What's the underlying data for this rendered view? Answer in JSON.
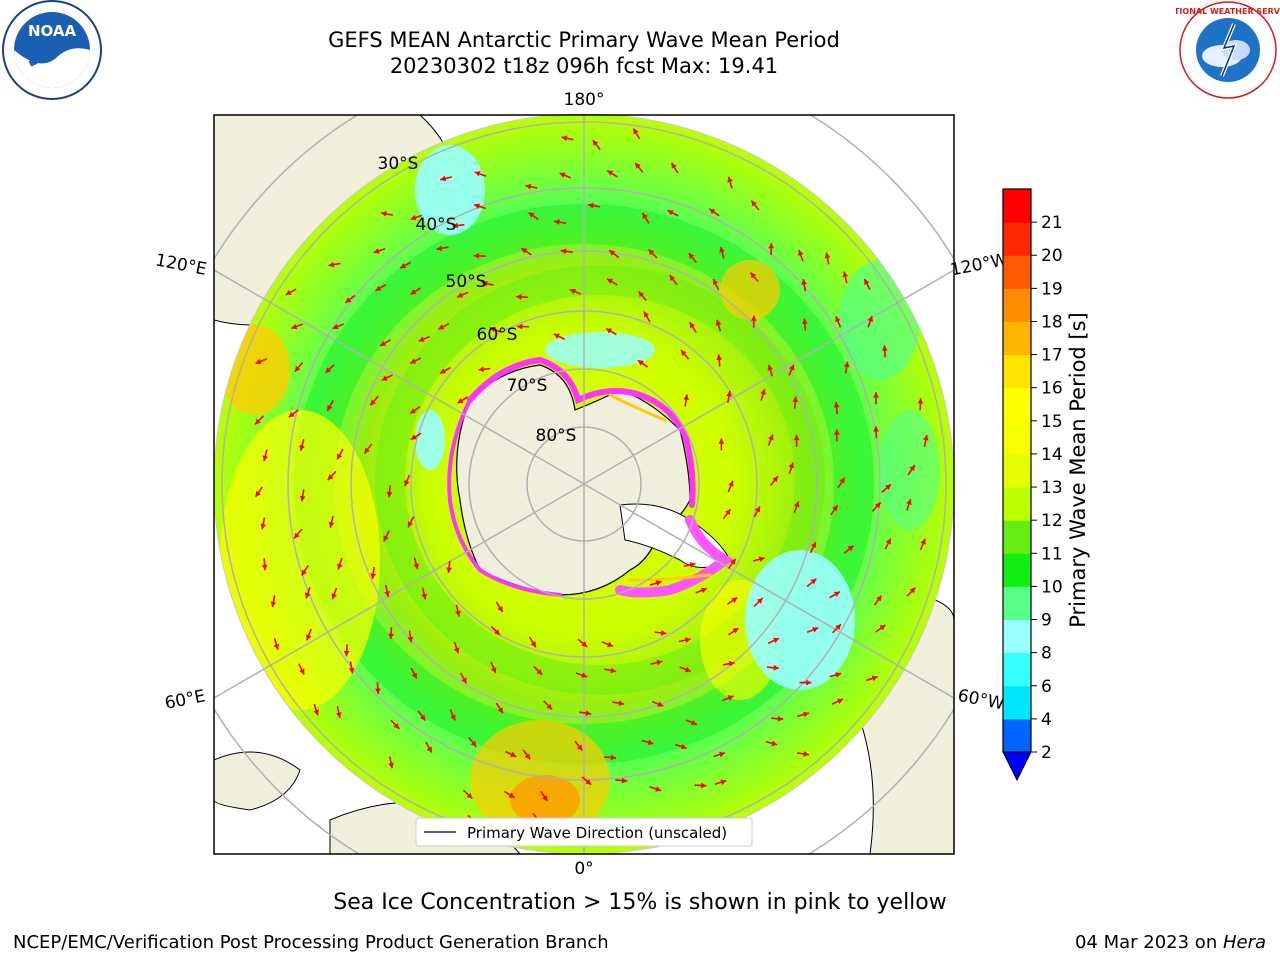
{
  "title": {
    "line1": "GEFS MEAN Antarctic Primary Wave Mean Period",
    "line2": "20230302 t18z 096h fcst   Max: 19.41"
  },
  "logos": {
    "noaa": {
      "icon": "noaa-logo",
      "text": "NOAA"
    },
    "nws": {
      "icon": "nws-logo",
      "text": "NATIONAL WEATHER SERVICE"
    }
  },
  "map": {
    "projection": "south-polar-stereographic",
    "lon_labels": {
      "top": "180°",
      "bottom": "0°",
      "left_upper": "120°E",
      "left_lower": "60°E",
      "right_upper": "120°W",
      "right_lower": "60°W"
    },
    "lat_labels": [
      "30°S",
      "40°S",
      "50°S",
      "60°S",
      "70°S",
      "80°S"
    ],
    "legend": "Primary Wave Direction (unscaled)",
    "arrow_color": "#ff0000",
    "land_color": "#efefdb",
    "sea_ice_colors": [
      "#ff33ff",
      "#ff77ff",
      "#ffcc00"
    ]
  },
  "colorbar": {
    "label": "Primary Wave Mean Period [s]",
    "ticks": [
      "2",
      "4",
      "6",
      "8",
      "9",
      "10",
      "11",
      "12",
      "13",
      "14",
      "15",
      "16",
      "17",
      "18",
      "19",
      "20",
      "21"
    ],
    "colors": [
      "#0064ff",
      "#00e5ff",
      "#33ffff",
      "#99ffff",
      "#55ff88",
      "#11ee11",
      "#66ee11",
      "#bbff00",
      "#e6ff00",
      "#f5ff00",
      "#ffff00",
      "#ffe400",
      "#ffb400",
      "#ff8c00",
      "#ff5a00",
      "#ff2800",
      "#ff0000"
    ],
    "extend_color": "#0000ff"
  },
  "note": "Sea Ice Concentration > 15% is shown in pink to yellow",
  "footer": {
    "left": "NCEP/EMC/Verification Post Processing Product Generation Branch",
    "right_date": "04 Mar 2023 on ",
    "right_machine": "Hera"
  }
}
